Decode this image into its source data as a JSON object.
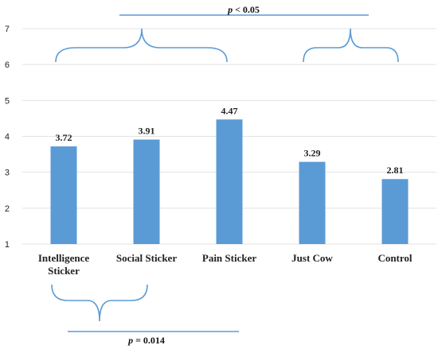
{
  "chart_data": {
    "type": "bar",
    "categories": [
      "Intelligence Sticker",
      "Social Sticker",
      "Pain Sticker",
      "Just Cow",
      "Control"
    ],
    "category_lines": [
      [
        "Intelligence",
        "Sticker"
      ],
      [
        "Social Sticker"
      ],
      [
        "Pain Sticker"
      ],
      [
        "Just Cow"
      ],
      [
        "Control"
      ]
    ],
    "values": [
      3.72,
      3.91,
      4.47,
      3.29,
      2.81
    ],
    "data_labels": [
      "3.72",
      "3.91",
      "4.47",
      "3.29",
      "2.81"
    ],
    "ylim": [
      1,
      7
    ],
    "yticks": [
      1,
      2,
      3,
      4,
      5,
      6,
      7
    ],
    "grid": true,
    "bar_color": "#5b9bd5",
    "annotations": {
      "top": {
        "p_symbol": "p",
        "rest": " < 0.05"
      },
      "bottom": {
        "p_symbol": "p",
        "rest": " = 0.014"
      }
    }
  }
}
